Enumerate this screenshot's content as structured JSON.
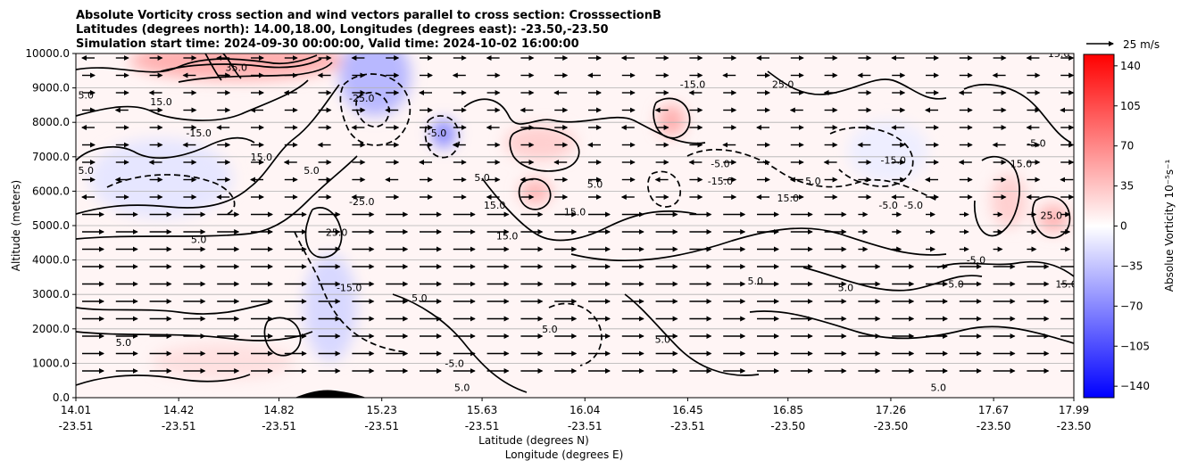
{
  "chart_data": {
    "type": "heatmap",
    "title_lines": [
      "Absolute Vorticity cross section and wind vectors parallel to cross section: CrosssectionB",
      "Latitudes (degrees north): 14.00,18.00, Longitudes (degrees east): -23.50,-23.50",
      "Simulation start time: 2024-09-30 00:00:00, Valid time: 2024-10-02 16:00:00"
    ],
    "ylabel": "Altitude (meters)",
    "xlabel_lines": [
      "Latitude (degrees N)",
      "Longitude (degrees E)"
    ],
    "ylim": [
      0,
      10000
    ],
    "y_ticks": [
      "0.0",
      "1000.0",
      "2000.0",
      "3000.0",
      "4000.0",
      "5000.0",
      "6000.0",
      "7000.0",
      "8000.0",
      "9000.0",
      "10000.0"
    ],
    "x_ticks": [
      {
        "lat": "14.01",
        "lon": "-23.51"
      },
      {
        "lat": "14.42",
        "lon": "-23.51"
      },
      {
        "lat": "14.82",
        "lon": "-23.51"
      },
      {
        "lat": "15.23",
        "lon": "-23.51"
      },
      {
        "lat": "15.63",
        "lon": "-23.51"
      },
      {
        "lat": "16.04",
        "lon": "-23.51"
      },
      {
        "lat": "16.45",
        "lon": "-23.51"
      },
      {
        "lat": "16.85",
        "lon": "-23.50"
      },
      {
        "lat": "17.26",
        "lon": "-23.50"
      },
      {
        "lat": "17.67",
        "lon": "-23.50"
      },
      {
        "lat": "17.99",
        "lon": "-23.50"
      }
    ],
    "grid": "horizontal",
    "colorbar": {
      "label": "Absolue Vorticity 10⁻⁵s⁻¹",
      "range": [
        -150,
        150
      ],
      "ticks": [
        "140",
        "105",
        "70",
        "35",
        "0",
        "−35",
        "−70",
        "−105",
        "−140"
      ],
      "tick_values": [
        140,
        105,
        70,
        35,
        0,
        -35,
        -70,
        -105,
        -140
      ],
      "colormap": "bwr",
      "color_low": "#0000ff",
      "color_mid": "#ffffff",
      "color_high": "#ff0000"
    },
    "quiver_key": {
      "label": "25 m/s",
      "speed": 25
    },
    "contour_labels": [
      {
        "text": "5.0",
        "lat": 14.05,
        "alt": 8800
      },
      {
        "text": "15.0",
        "lat": 14.35,
        "alt": 8600
      },
      {
        "text": "35.0",
        "lat": 14.65,
        "alt": 9600
      },
      {
        "text": "-25.0",
        "lat": 15.15,
        "alt": 8700
      },
      {
        "text": "-15.0",
        "lat": 14.5,
        "alt": 7700
      },
      {
        "text": "15.0",
        "lat": 14.75,
        "alt": 7000
      },
      {
        "text": "5.0",
        "lat": 14.05,
        "alt": 6600
      },
      {
        "text": "5.0",
        "lat": 14.95,
        "alt": 6600
      },
      {
        "text": "-25.0",
        "lat": 15.15,
        "alt": 5700
      },
      {
        "text": "25.0",
        "lat": 15.05,
        "alt": 4800
      },
      {
        "text": "5.0",
        "lat": 14.5,
        "alt": 4600
      },
      {
        "text": "-15.0",
        "lat": 15.1,
        "alt": 3200
      },
      {
        "text": "5.0",
        "lat": 15.38,
        "alt": 2900
      },
      {
        "text": "15.0",
        "lat": 15.68,
        "alt": 5600
      },
      {
        "text": "15.0",
        "lat": 15.73,
        "alt": 4700
      },
      {
        "text": "5.0",
        "lat": 15.63,
        "alt": 6400
      },
      {
        "text": "-5.0",
        "lat": 15.45,
        "alt": 7700
      },
      {
        "text": "5.0",
        "lat": 16.08,
        "alt": 6200
      },
      {
        "text": "15.0",
        "lat": 16.0,
        "alt": 5400
      },
      {
        "text": "-15.0",
        "lat": 16.47,
        "alt": 9100
      },
      {
        "text": "-5.0",
        "lat": 16.58,
        "alt": 6800
      },
      {
        "text": "-15.0",
        "lat": 16.58,
        "alt": 6300
      },
      {
        "text": "25.0",
        "lat": 16.83,
        "alt": 9100
      },
      {
        "text": "15.0",
        "lat": 16.85,
        "alt": 5800
      },
      {
        "text": "5.0",
        "lat": 16.95,
        "alt": 6300
      },
      {
        "text": "-5.0",
        "lat": 17.25,
        "alt": 5600
      },
      {
        "text": "-5.0",
        "lat": 17.35,
        "alt": 5600
      },
      {
        "text": "-15.0",
        "lat": 17.27,
        "alt": 6900
      },
      {
        "text": "15.0",
        "lat": 17.78,
        "alt": 6800
      },
      {
        "text": "-5.0",
        "lat": 17.84,
        "alt": 7400
      },
      {
        "text": "25.0",
        "lat": 17.9,
        "alt": 5300
      },
      {
        "text": "15.0",
        "lat": 17.96,
        "alt": 3300
      },
      {
        "text": "15.0",
        "lat": 17.93,
        "alt": 10000
      },
      {
        "text": "5.0",
        "lat": 15.9,
        "alt": 2000
      },
      {
        "text": "5.0",
        "lat": 16.35,
        "alt": 1700
      },
      {
        "text": "-5.0",
        "lat": 15.52,
        "alt": 1000
      },
      {
        "text": "5.0",
        "lat": 15.55,
        "alt": 300
      },
      {
        "text": "5.0",
        "lat": 17.45,
        "alt": 300
      },
      {
        "text": "5.0",
        "lat": 14.2,
        "alt": 1600
      },
      {
        "text": "5.0",
        "lat": 16.72,
        "alt": 3400
      },
      {
        "text": "5.0",
        "lat": 17.08,
        "alt": 3200
      },
      {
        "text": "-5.0",
        "lat": 17.6,
        "alt": 4000
      },
      {
        "text": "5.0",
        "lat": 17.52,
        "alt": 3300
      }
    ]
  }
}
